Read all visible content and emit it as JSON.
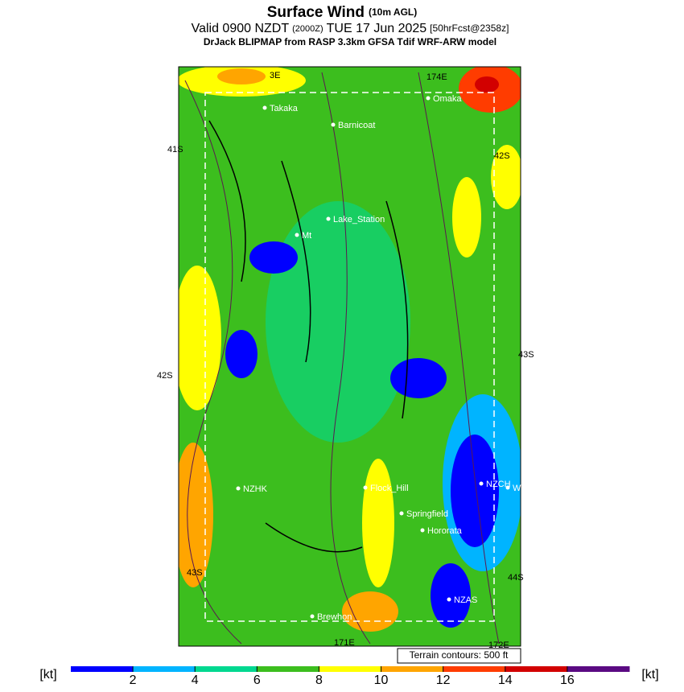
{
  "title": {
    "main": "Surface Wind",
    "main_note": "(10m AGL)",
    "valid": "Valid 0900 NZDT",
    "valid_z": "(2000Z)",
    "date": "TUE 17 Jun 2025",
    "forecast": "[50hrFcst@2358z]",
    "subtitle": "DrJack BLIPMAP from RASP 3.3km GFSA Tdif WRF-ARW model"
  },
  "map": {
    "places": [
      "Takaka",
      "Barnicoat",
      "Omaka",
      "Lake_Station",
      "Mt",
      "NZHK",
      "Flock_Hill",
      "NZCH",
      "Wigram",
      "Springfield",
      "Hororata",
      "NZAS",
      "Brewhon"
    ],
    "grid_labels": [
      "3E",
      "174E",
      "41S",
      "42S",
      "42S",
      "43S",
      "43S",
      "44S",
      "171E",
      "172E"
    ],
    "note": "Terrain contours: 500 ft"
  },
  "colorbar": {
    "unit": "[kt]",
    "lim": [
      0,
      18
    ],
    "ticks": [
      2,
      4,
      6,
      8,
      10,
      12,
      14,
      16
    ],
    "colors": [
      "#0000ff",
      "#00b4ff",
      "#00d890",
      "#3cbe1e",
      "#ffff00",
      "#ffa500",
      "#ff3c00",
      "#d20000",
      "#5a0a82"
    ]
  }
}
